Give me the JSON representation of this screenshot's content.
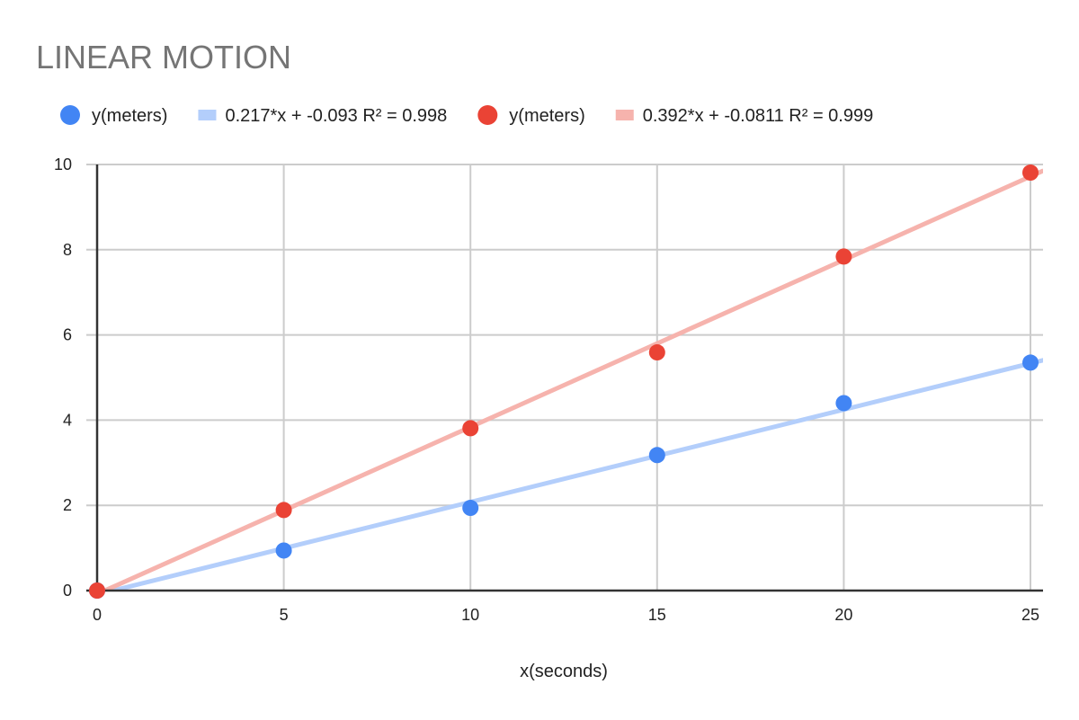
{
  "chart_data": {
    "type": "scatter",
    "title": "LINEAR MOTION",
    "xlabel": "x(seconds)",
    "ylabel": "",
    "xlim": [
      0,
      25.35
    ],
    "ylim": [
      0,
      10
    ],
    "xticks": [
      "0",
      "5",
      "10",
      "15",
      "20",
      "25"
    ],
    "yticks": [
      "0",
      "2",
      "4",
      "6",
      "8",
      "10"
    ],
    "grid": true,
    "legend_position": "top",
    "series": [
      {
        "name": "y(meters)",
        "color": "#4285f4",
        "x": [
          0,
          5,
          10,
          15,
          20,
          25
        ],
        "y": [
          0,
          0.94,
          1.94,
          3.18,
          4.4,
          5.35
        ],
        "trendline": {
          "label": "0.217*x + -0.093 R² = 0.998",
          "slope": 0.217,
          "intercept": -0.093,
          "color": "#b3cefb"
        }
      },
      {
        "name": "y(meters)",
        "color": "#ea4335",
        "x": [
          0,
          5,
          10,
          15,
          20,
          25
        ],
        "y": [
          0,
          1.89,
          3.81,
          5.59,
          7.84,
          9.81
        ],
        "trendline": {
          "label": "0.392*x + -0.0811 R² = 0.999",
          "slope": 0.392,
          "intercept": -0.0811,
          "color": "#f6b3ad"
        }
      }
    ]
  }
}
